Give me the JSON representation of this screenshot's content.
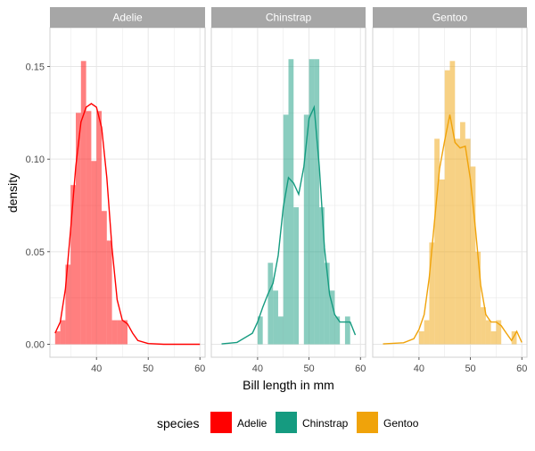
{
  "chart_data": {
    "type": "histogram",
    "facet_layout": "columns",
    "xlabel": "Bill length in mm",
    "ylabel": "density",
    "x_ticks": [
      40,
      50,
      60
    ],
    "y_ticks": [
      0.0,
      0.05,
      0.1,
      0.15
    ],
    "y_tick_labels": [
      "0.00",
      "0.05",
      "0.10",
      "0.15"
    ],
    "xlim": [
      31,
      61
    ],
    "ylim": [
      -0.007,
      0.171
    ],
    "bin_width": 1,
    "grid": true,
    "legend": {
      "title": "species",
      "position": "bottom",
      "items": [
        "Adelie",
        "Chinstrap",
        "Gentoo"
      ]
    },
    "colors": {
      "Adelie": "#ff0000",
      "Chinstrap": "#159b80",
      "Gentoo": "#f0a30a",
      "strip_bg": "#a6a6a6",
      "strip_text": "#ffffff",
      "grid": "#e6e6e6",
      "panel_border": "#d2d2d2"
    },
    "facets": [
      {
        "label": "Adelie",
        "histogram": [
          {
            "x0": 32,
            "density": 0.007
          },
          {
            "x0": 33,
            "density": 0.013
          },
          {
            "x0": 34,
            "density": 0.043
          },
          {
            "x0": 35,
            "density": 0.086
          },
          {
            "x0": 36,
            "density": 0.125
          },
          {
            "x0": 37,
            "density": 0.153
          },
          {
            "x0": 38,
            "density": 0.126
          },
          {
            "x0": 39,
            "density": 0.099
          },
          {
            "x0": 40,
            "density": 0.126
          },
          {
            "x0": 41,
            "density": 0.072
          },
          {
            "x0": 42,
            "density": 0.056
          },
          {
            "x0": 43,
            "density": 0.013
          },
          {
            "x0": 44,
            "density": 0.013
          },
          {
            "x0": 45,
            "density": 0.013
          }
        ],
        "density_curve": [
          [
            32,
            0.006
          ],
          [
            33,
            0.012
          ],
          [
            34,
            0.03
          ],
          [
            35,
            0.062
          ],
          [
            36,
            0.096
          ],
          [
            37,
            0.12
          ],
          [
            38,
            0.128
          ],
          [
            39,
            0.13
          ],
          [
            40,
            0.128
          ],
          [
            41,
            0.117
          ],
          [
            42,
            0.09
          ],
          [
            43,
            0.052
          ],
          [
            44,
            0.024
          ],
          [
            45,
            0.013
          ],
          [
            46,
            0.011
          ],
          [
            47,
            0.006
          ],
          [
            48,
            0.002
          ],
          [
            50,
            0.0004
          ],
          [
            53,
            0.0
          ],
          [
            60,
            0.0
          ]
        ]
      },
      {
        "label": "Chinstrap",
        "histogram": [
          {
            "x0": 40,
            "density": 0.015
          },
          {
            "x0": 42,
            "density": 0.044
          },
          {
            "x0": 43,
            "density": 0.029
          },
          {
            "x0": 44,
            "density": 0.015
          },
          {
            "x0": 45,
            "density": 0.124
          },
          {
            "x0": 46,
            "density": 0.154
          },
          {
            "x0": 47,
            "density": 0.074
          },
          {
            "x0": 49,
            "density": 0.124
          },
          {
            "x0": 50,
            "density": 0.154
          },
          {
            "x0": 51,
            "density": 0.154
          },
          {
            "x0": 52,
            "density": 0.074
          },
          {
            "x0": 53,
            "density": 0.044
          },
          {
            "x0": 54,
            "density": 0.029
          },
          {
            "x0": 55,
            "density": 0.015
          },
          {
            "x0": 57,
            "density": 0.015
          }
        ],
        "density_curve": [
          [
            33,
            0.0002
          ],
          [
            36,
            0.001
          ],
          [
            39,
            0.006
          ],
          [
            40,
            0.012
          ],
          [
            41,
            0.02
          ],
          [
            42,
            0.027
          ],
          [
            43,
            0.033
          ],
          [
            44,
            0.048
          ],
          [
            45,
            0.074
          ],
          [
            46,
            0.09
          ],
          [
            47,
            0.087
          ],
          [
            48,
            0.081
          ],
          [
            49,
            0.096
          ],
          [
            50,
            0.122
          ],
          [
            51,
            0.128
          ],
          [
            52,
            0.096
          ],
          [
            53,
            0.052
          ],
          [
            54,
            0.027
          ],
          [
            55,
            0.016
          ],
          [
            56,
            0.012
          ],
          [
            57,
            0.012
          ],
          [
            58,
            0.012
          ],
          [
            59,
            0.005
          ]
        ]
      },
      {
        "label": "Gentoo",
        "histogram": [
          {
            "x0": 40,
            "density": 0.007
          },
          {
            "x0": 41,
            "density": 0.013
          },
          {
            "x0": 42,
            "density": 0.055
          },
          {
            "x0": 43,
            "density": 0.111
          },
          {
            "x0": 44,
            "density": 0.089
          },
          {
            "x0": 45,
            "density": 0.148
          },
          {
            "x0": 46,
            "density": 0.153
          },
          {
            "x0": 47,
            "density": 0.111
          },
          {
            "x0": 48,
            "density": 0.12
          },
          {
            "x0": 49,
            "density": 0.111
          },
          {
            "x0": 50,
            "density": 0.096
          },
          {
            "x0": 51,
            "density": 0.05
          },
          {
            "x0": 52,
            "density": 0.02
          },
          {
            "x0": 53,
            "density": 0.013
          },
          {
            "x0": 54,
            "density": 0.007
          },
          {
            "x0": 55,
            "density": 0.013
          },
          {
            "x0": 58,
            "density": 0.007
          }
        ],
        "density_curve": [
          [
            33,
            0.0002
          ],
          [
            37,
            0.0008
          ],
          [
            39,
            0.003
          ],
          [
            40,
            0.008
          ],
          [
            41,
            0.016
          ],
          [
            42,
            0.036
          ],
          [
            43,
            0.066
          ],
          [
            44,
            0.095
          ],
          [
            45,
            0.11
          ],
          [
            46,
            0.124
          ],
          [
            47,
            0.109
          ],
          [
            48,
            0.106
          ],
          [
            49,
            0.107
          ],
          [
            50,
            0.089
          ],
          [
            51,
            0.062
          ],
          [
            52,
            0.032
          ],
          [
            53,
            0.016
          ],
          [
            54,
            0.012
          ],
          [
            55,
            0.012
          ],
          [
            56,
            0.01
          ],
          [
            57,
            0.006
          ],
          [
            58,
            0.002
          ],
          [
            59,
            0.007
          ],
          [
            60,
            0.001
          ]
        ]
      }
    ]
  }
}
